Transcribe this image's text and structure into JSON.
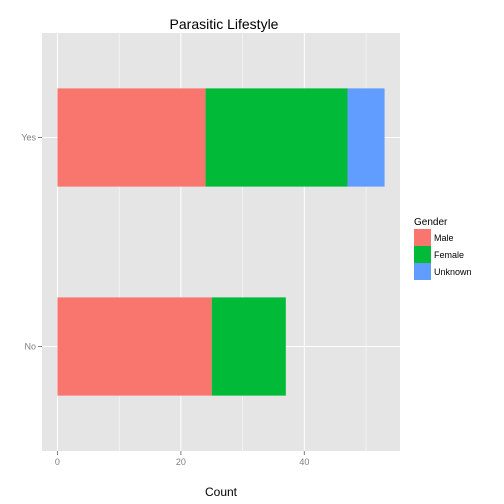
{
  "chart_data": {
    "type": "bar",
    "orientation": "horizontal",
    "stacked": true,
    "title": "Parasitic Lifestyle",
    "xlabel": "Count",
    "ylabel": "",
    "categories": [
      "No",
      "Yes"
    ],
    "series": [
      {
        "name": "Male",
        "values": [
          25,
          24
        ],
        "color": "#F8766D"
      },
      {
        "name": "Female",
        "values": [
          12,
          23
        ],
        "color": "#00BA38"
      },
      {
        "name": "Unknown",
        "values": [
          0,
          6
        ],
        "color": "#619CFF"
      }
    ],
    "xlim": [
      -2.5,
      55.5
    ],
    "xticks": [
      0,
      20,
      40
    ],
    "grid": true,
    "legend_title": "Gender",
    "legend_position": "right",
    "panel_color": "#E5E5E5",
    "grid_color": "#FFFFFF"
  }
}
